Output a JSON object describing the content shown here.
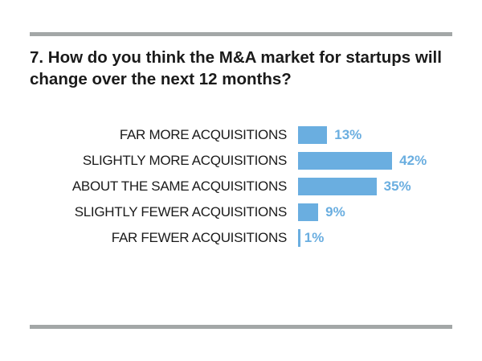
{
  "chart_data": {
    "type": "bar",
    "orientation": "horizontal",
    "title": "7. How do you think the M&A market for startups will change over the next 12 months?",
    "categories": [
      "FAR MORE ACQUISITIONS",
      "SLIGHTLY MORE ACQUISITIONS",
      "ABOUT THE SAME ACQUISITIONS",
      "SLIGHTLY FEWER ACQUISITIONS",
      "FAR FEWER ACQUISITIONS"
    ],
    "values": [
      13,
      42,
      35,
      9,
      1
    ],
    "labels": [
      "13%",
      "42%",
      "35%",
      "9%",
      "1%"
    ],
    "unit": "%",
    "bar_color": "#6aaee0",
    "rule_color": "#a3a7a7",
    "grid": false
  }
}
